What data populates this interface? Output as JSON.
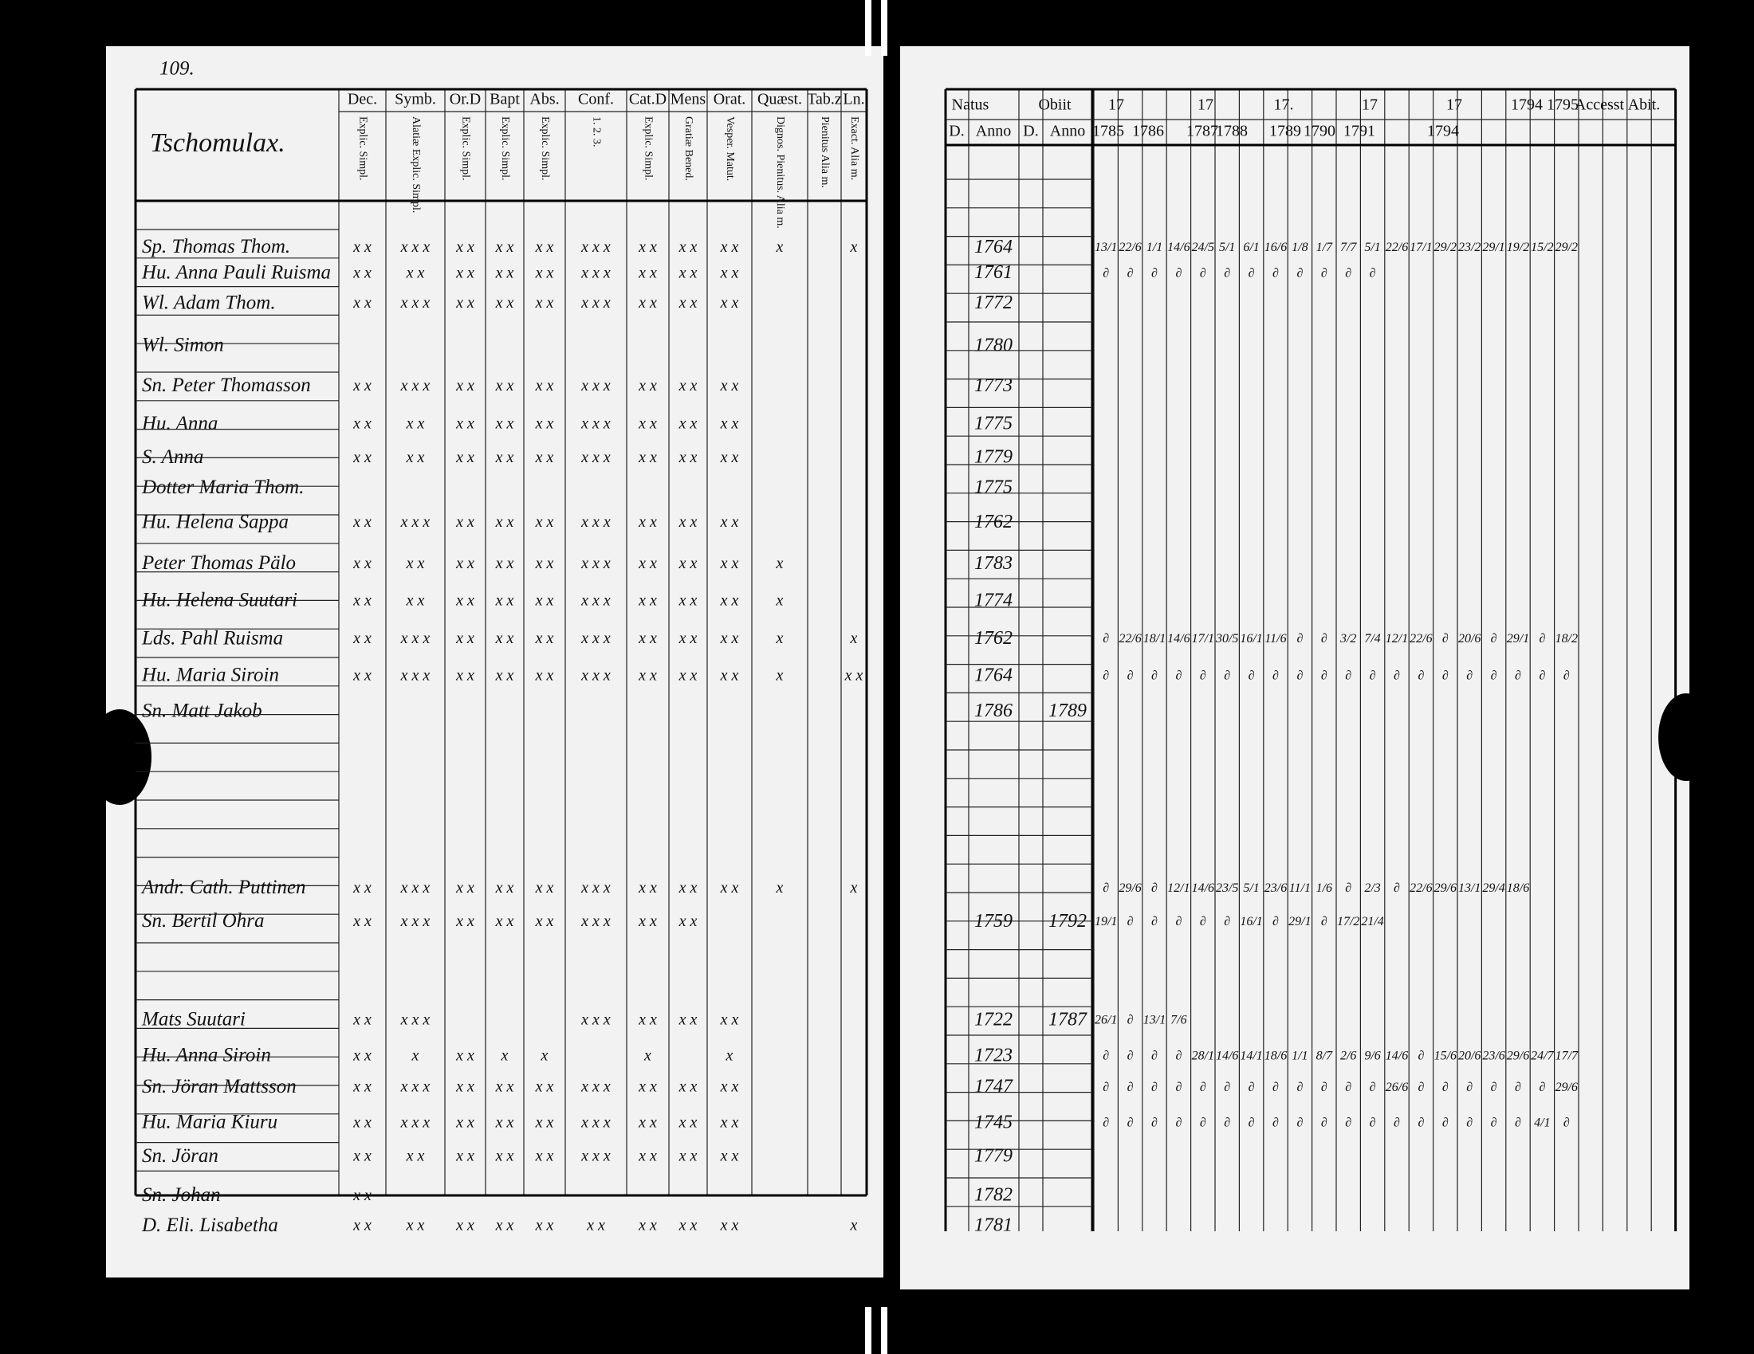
{
  "left_page": {
    "page_number": "109.",
    "heading": "Tschomulax.",
    "columns": [
      "Dec.",
      "Symb.",
      "Or.D",
      "Bapt",
      "Abs.",
      "Conf.",
      "Cat.D",
      "Mens",
      "Orat.",
      "Quæst.",
      "Tab.z",
      "Ln."
    ],
    "subcolumns": [
      "Explic. Simpl.",
      "Alatiæ Explic. Simpl.",
      "Explic. Simpl.",
      "Explic. Simpl.",
      "Explic. Simpl.",
      "1. 2. 3.",
      "Explic. Simpl.",
      "Gratiæ Bened.",
      "Vesper. Matut.",
      "Dignos. Pienitus. Alia m.",
      "Pienitus Alia m.",
      "Exact. Alia m."
    ]
  },
  "right_page": {
    "headers": [
      "Natus",
      "Obiit",
      "17",
      "17",
      "17.",
      "17",
      "17",
      "1794",
      "1795",
      "Accesst",
      "Abit."
    ],
    "subheaders": [
      "D.",
      "Anno",
      "D.",
      "Anno",
      "1785",
      "1786",
      "1787",
      "1788",
      "1789",
      "1790",
      "1791",
      "1794"
    ]
  },
  "rows": [
    {
      "name": "Sp. Thomas Thom.",
      "marks": [
        "x x",
        "x x x",
        "x x",
        "x x",
        "x x",
        "x x x",
        "x x",
        "x x",
        "x x",
        "x",
        "",
        "x"
      ],
      "born": "1764",
      "entries": [
        "13/1",
        "22/6",
        "1/1",
        "14/6",
        "24/5",
        "5/1",
        "6/1",
        "16/6",
        "1/8",
        "1/7",
        "7/7",
        "5/1",
        "22/6",
        "17/1",
        "29/2",
        "23/2",
        "29/1",
        "19/2",
        "15/2",
        "29/2"
      ]
    },
    {
      "name": "Hu. Anna Pauli Ruisma",
      "marks": [
        "x x",
        "x x",
        "x x",
        "x x",
        "x x",
        "x x x",
        "x x",
        "x x",
        "x x"
      ],
      "born": "1761",
      "entries": [
        "∂",
        "∂",
        "∂",
        "∂",
        "∂",
        "∂",
        "∂",
        "∂",
        "∂",
        "∂",
        "∂",
        "∂"
      ]
    },
    {
      "name": "Wl. Adam Thom.",
      "marks": [
        "x x",
        "x x x",
        "x x",
        "x x",
        "x x",
        "x x x",
        "x x",
        "x x",
        "x x"
      ],
      "born": "1772"
    },
    {
      "name": "Wl. Simon",
      "born": "1780"
    },
    {
      "name": "Sn. Peter Thomasson",
      "marks": [
        "x x",
        "x x x",
        "x x",
        "x x",
        "x x",
        "x x x",
        "x x",
        "x x",
        "x x"
      ],
      "born": "1773"
    },
    {
      "name": "Hu. Anna",
      "marks": [
        "x x",
        "x x",
        "x x",
        "x x",
        "x x",
        "x x x",
        "x x",
        "x x",
        "x x"
      ],
      "born": "1775"
    },
    {
      "name": "S. Anna",
      "marks": [
        "x x",
        "x x",
        "x x",
        "x x",
        "x x",
        "x x x",
        "x x",
        "x x",
        "x x"
      ],
      "born": "1779"
    },
    {
      "name": "Dotter Maria Thom.",
      "born": "1775"
    },
    {
      "name": "Hu. Helena Sappa",
      "marks": [
        "x x",
        "x x x",
        "x x",
        "x x",
        "x x",
        "x x x",
        "x x",
        "x x",
        "x x"
      ],
      "born": "1762"
    },
    {
      "name": "Peter Thomas Pälo",
      "marks": [
        "x x",
        "x x",
        "x x",
        "x x",
        "x x",
        "x x x",
        "x x",
        "x x",
        "x x",
        "x"
      ],
      "born": "1783"
    },
    {
      "name": "Hu. Helena Suutari",
      "marks": [
        "x x",
        "x x",
        "x x",
        "x x",
        "x x",
        "x x x",
        "x x",
        "x x",
        "x x",
        "x"
      ],
      "born": "1774"
    },
    {
      "name": "Lds. Pahl Ruisma",
      "marks": [
        "x x",
        "x x x",
        "x x",
        "x x",
        "x x",
        "x x x",
        "x x",
        "x x",
        "x x",
        "x",
        "",
        "x"
      ],
      "born": "1762",
      "entries": [
        "∂",
        "22/6",
        "18/1",
        "14/6",
        "17/1",
        "30/5",
        "16/1",
        "11/6",
        "∂",
        "∂",
        "3/2",
        "7/4",
        "12/1",
        "22/6",
        "∂",
        "20/6",
        "∂",
        "29/1",
        "∂",
        "18/2"
      ]
    },
    {
      "name": "Hu. Maria Siroin",
      "marks": [
        "x x",
        "x x x",
        "x x",
        "x x",
        "x x",
        "x x x",
        "x x",
        "x x",
        "x x",
        "x",
        "",
        "x x"
      ],
      "born": "1764",
      "entries": [
        "∂",
        "∂",
        "∂",
        "∂",
        "∂",
        "∂",
        "∂",
        "∂",
        "∂",
        "∂",
        "∂",
        "∂",
        "∂",
        "∂",
        "∂",
        "∂",
        "∂",
        "∂",
        "∂",
        "∂"
      ]
    },
    {
      "name": "Sn. Matt Jakob",
      "born": "1786",
      "died": "1789"
    },
    {
      "name": "Andr. Cath. Puttinen",
      "marks": [
        "x x",
        "x x x",
        "x x",
        "x x",
        "x x",
        "x x x",
        "x x",
        "x x",
        "x x",
        "x",
        "",
        "x"
      ],
      "entries": [
        "∂",
        "29/6",
        "∂",
        "12/1",
        "14/6",
        "23/5",
        "5/1",
        "23/6",
        "11/1",
        "1/6",
        "∂",
        "2/3",
        "∂",
        "22/6",
        "29/6",
        "13/1",
        "29/4",
        "18/6"
      ]
    },
    {
      "name": "Sn. Bertil Ohra",
      "marks": [
        "x x",
        "x x x",
        "x x",
        "x x",
        "x x",
        "x x x",
        "x x",
        "x x"
      ],
      "born": "1759",
      "died": "1792",
      "entries": [
        "19/1",
        "∂",
        "∂",
        "∂",
        "∂",
        "∂",
        "16/1",
        "∂",
        "29/1",
        "∂",
        "17/2",
        "21/4"
      ]
    },
    {
      "name": "Mats Suutari",
      "marks": [
        "x x",
        "x x x",
        "",
        "",
        "",
        "x x x",
        "x x",
        "x x",
        "x x"
      ],
      "born": "1722",
      "died": "1787",
      "entries": [
        "26/1",
        "∂",
        "13/1",
        "7/6"
      ]
    },
    {
      "name": "Hu. Anna Siroin",
      "marks": [
        "x x",
        "x",
        "x x",
        "x",
        "x",
        "",
        "x",
        "",
        "x"
      ],
      "born": "1723",
      "entries": [
        "∂",
        "∂",
        "∂",
        "∂",
        "28/1",
        "14/6",
        "14/1",
        "18/6",
        "1/1",
        "8/7",
        "2/6",
        "9/6",
        "14/6",
        "∂",
        "15/6",
        "20/6",
        "23/6",
        "29/6",
        "24/7",
        "17/7"
      ]
    },
    {
      "name": "Sn. Jöran Mattsson",
      "marks": [
        "x x",
        "x x x",
        "x x",
        "x x",
        "x x",
        "x x x",
        "x x",
        "x x",
        "x x"
      ],
      "born": "1747",
      "entries": [
        "∂",
        "∂",
        "∂",
        "∂",
        "∂",
        "∂",
        "∂",
        "∂",
        "∂",
        "∂",
        "∂",
        "∂",
        "26/6",
        "∂",
        "∂",
        "∂",
        "∂",
        "∂",
        "∂",
        "29/6"
      ]
    },
    {
      "name": "Hu. Maria Kiuru",
      "marks": [
        "x x",
        "x x x",
        "x x",
        "x x",
        "x x",
        "x x x",
        "x x",
        "x x",
        "x x"
      ],
      "born": "1745",
      "entries": [
        "∂",
        "∂",
        "∂",
        "∂",
        "∂",
        "∂",
        "∂",
        "∂",
        "∂",
        "∂",
        "∂",
        "∂",
        "∂",
        "∂",
        "∂",
        "∂",
        "∂",
        "∂",
        "4/1",
        "∂"
      ]
    },
    {
      "name": "Sn. Jöran",
      "marks": [
        "x x",
        "x x",
        "x x",
        "x x",
        "x x",
        "x x x",
        "x x",
        "x x",
        "x x"
      ],
      "born": "1779"
    },
    {
      "name": "Sn. Johan",
      "marks": [
        "x x"
      ],
      "born": "1782"
    },
    {
      "name": "D. Eli. Lisabetha",
      "marks": [
        "x x",
        "x x",
        "x x",
        "x x",
        "x x",
        "x x",
        "x x",
        "x x",
        "x x",
        "",
        "",
        "x"
      ],
      "born": "1781"
    }
  ]
}
